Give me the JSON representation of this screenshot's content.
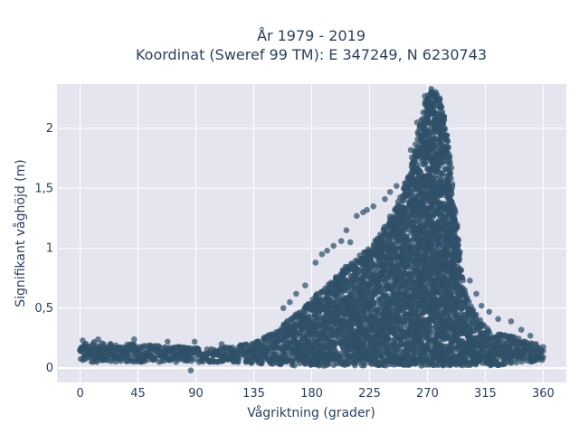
{
  "chart_data": {
    "type": "scatter",
    "title_line1": "År 1979 - 2019",
    "title_line2": "Koordinat (Sweref 99 TM): E 347249, N 6230743",
    "xlabel": "Vågriktning (grader)",
    "ylabel": "Signifikant våghöjd (m)",
    "xlim": [
      -18,
      378
    ],
    "ylim": [
      -0.12,
      2.37
    ],
    "x_ticks": [
      0,
      45,
      90,
      135,
      180,
      225,
      270,
      315,
      360
    ],
    "x_tick_labels": [
      "0",
      "45",
      "90",
      "135",
      "180",
      "225",
      "270",
      "315",
      "360"
    ],
    "y_ticks": [
      0,
      0.5,
      1,
      1.5,
      2
    ],
    "y_tick_labels": [
      "0",
      "0,5",
      "1",
      "1,5",
      "2"
    ],
    "grid": true,
    "marker_color": "#2f5068",
    "plot_background": "#e5e5f0",
    "envelope": {
      "x": [
        0,
        10,
        20,
        30,
        45,
        60,
        75,
        90,
        105,
        120,
        135,
        150,
        165,
        180,
        195,
        210,
        225,
        235,
        245,
        255,
        260,
        265,
        270,
        275,
        280,
        285,
        290,
        295,
        300,
        310,
        320,
        330,
        340,
        350,
        360
      ],
      "upper": [
        0.2,
        0.22,
        0.21,
        0.2,
        0.2,
        0.19,
        0.18,
        0.17,
        0.17,
        0.18,
        0.22,
        0.3,
        0.42,
        0.58,
        0.72,
        0.88,
        1.0,
        1.15,
        1.35,
        1.6,
        1.85,
        2.1,
        2.3,
        2.32,
        2.25,
        2.0,
        1.5,
        0.95,
        0.6,
        0.42,
        0.3,
        0.28,
        0.25,
        0.22,
        0.2
      ],
      "lower": [
        0.05,
        0.05,
        0.05,
        0.05,
        0.05,
        0.05,
        0.05,
        0.05,
        0.05,
        0.05,
        0.04,
        0.03,
        0.02,
        0.02,
        0.02,
        0.02,
        0.02,
        0.02,
        0.02,
        0.02,
        0.02,
        0.02,
        0.02,
        0.02,
        0.02,
        0.02,
        0.02,
        0.02,
        0.02,
        0.02,
        0.02,
        0.03,
        0.04,
        0.05,
        0.05
      ]
    },
    "outliers": [
      {
        "x": 273,
        "y": 2.33
      },
      {
        "x": 268,
        "y": 2.27
      },
      {
        "x": 262,
        "y": 2.05
      },
      {
        "x": 257,
        "y": 1.82
      },
      {
        "x": 246,
        "y": 1.52
      },
      {
        "x": 241,
        "y": 1.47
      },
      {
        "x": 237,
        "y": 1.41
      },
      {
        "x": 228,
        "y": 1.35
      },
      {
        "x": 223,
        "y": 1.32
      },
      {
        "x": 220,
        "y": 1.3
      },
      {
        "x": 215,
        "y": 1.27
      },
      {
        "x": 210,
        "y": 1.05
      },
      {
        "x": 207,
        "y": 1.15
      },
      {
        "x": 203,
        "y": 1.06
      },
      {
        "x": 197,
        "y": 1.02
      },
      {
        "x": 192,
        "y": 0.98
      },
      {
        "x": 188,
        "y": 0.95
      },
      {
        "x": 183,
        "y": 0.88
      },
      {
        "x": 175,
        "y": 0.69
      },
      {
        "x": 168,
        "y": 0.62
      },
      {
        "x": 163,
        "y": 0.55
      },
      {
        "x": 158,
        "y": 0.5
      },
      {
        "x": 303,
        "y": 0.73
      },
      {
        "x": 308,
        "y": 0.62
      },
      {
        "x": 312,
        "y": 0.52
      },
      {
        "x": 318,
        "y": 0.47
      },
      {
        "x": 325,
        "y": 0.41
      },
      {
        "x": 335,
        "y": 0.39
      },
      {
        "x": 343,
        "y": 0.32
      },
      {
        "x": 350,
        "y": 0.27
      },
      {
        "x": 2,
        "y": 0.23
      },
      {
        "x": 14,
        "y": 0.24
      },
      {
        "x": 42,
        "y": 0.24
      },
      {
        "x": 68,
        "y": 0.22
      },
      {
        "x": 110,
        "y": 0.2
      },
      {
        "x": 89,
        "y": 0.22
      },
      {
        "x": 86,
        "y": -0.02
      }
    ]
  }
}
